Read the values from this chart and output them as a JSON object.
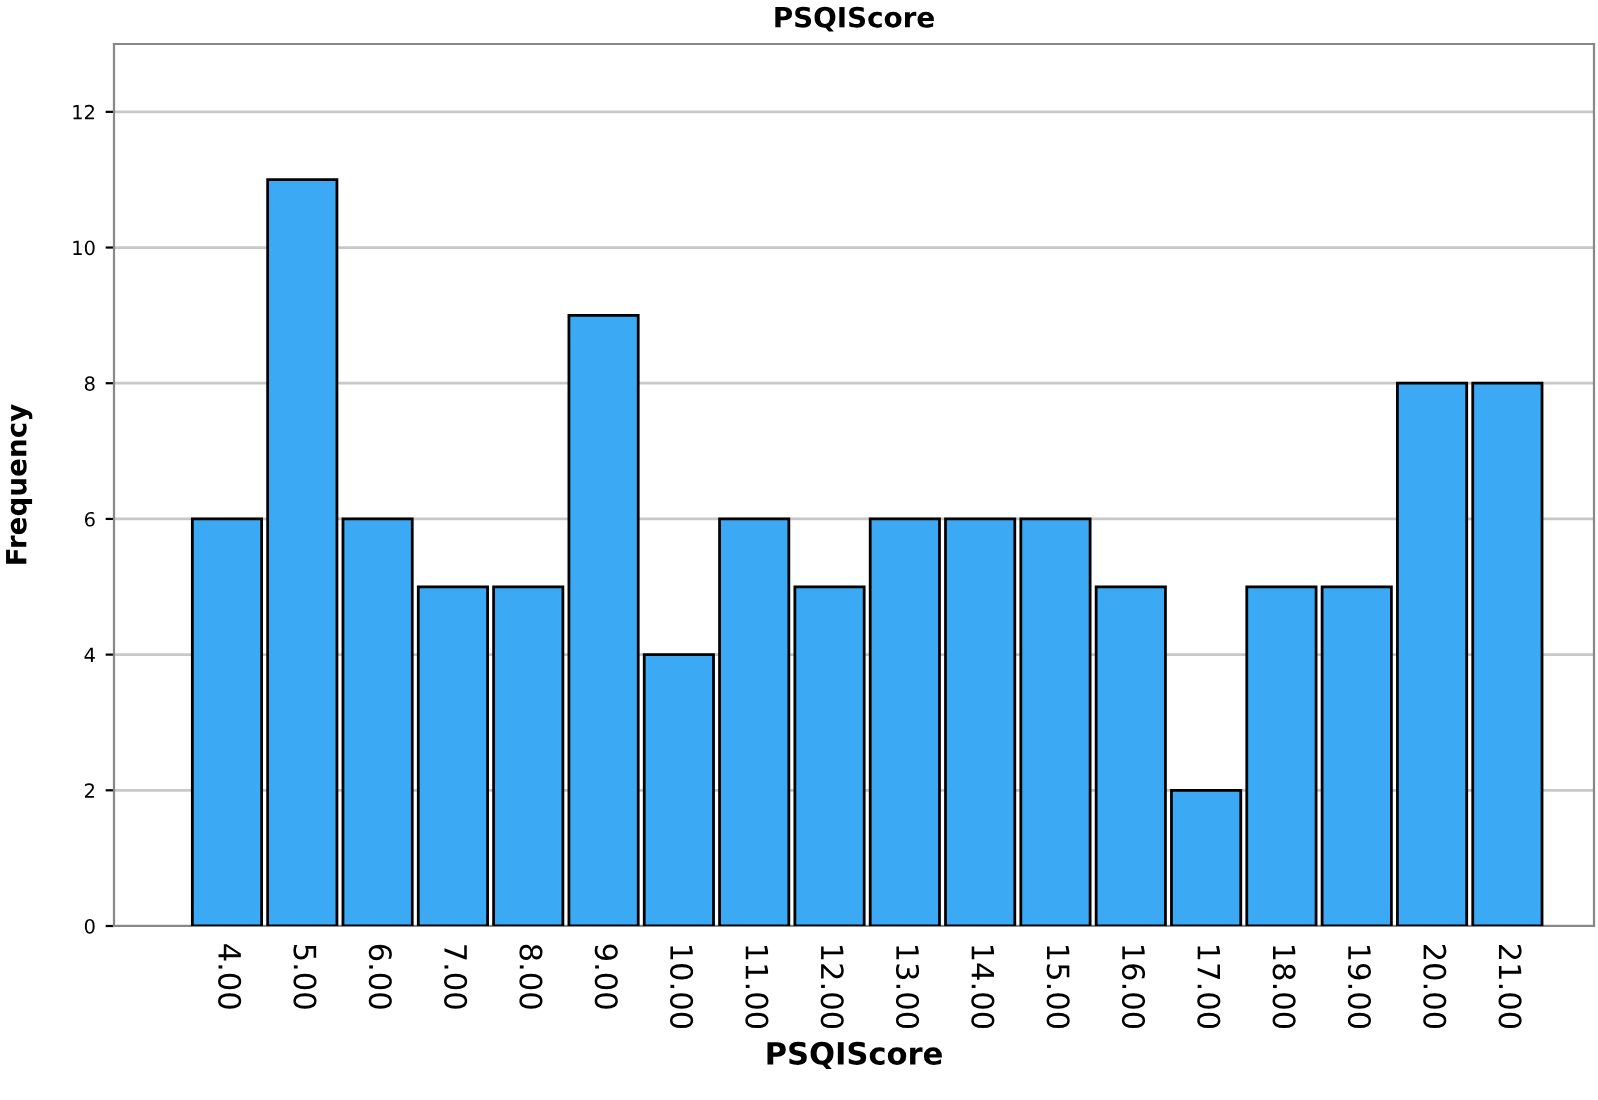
{
  "chart_data": {
    "type": "bar",
    "title": "PSQIScore",
    "xlabel": "PSQIScore",
    "ylabel": "Frequency",
    "categories": [
      "4.00",
      "5.00",
      "6.00",
      "7.00",
      "8.00",
      "9.00",
      "10.00",
      "11.00",
      "12.00",
      "13.00",
      "14.00",
      "15.00",
      "16.00",
      "17.00",
      "18.00",
      "19.00",
      "20.00",
      "21.00"
    ],
    "values": [
      6,
      11,
      6,
      5,
      5,
      9,
      4,
      6,
      5,
      6,
      6,
      6,
      5,
      2,
      5,
      5,
      8,
      8
    ],
    "color": "#3ca9f5",
    "ylim": [
      0,
      13
    ],
    "yticks": [
      0,
      2,
      4,
      6,
      8,
      10,
      12
    ],
    "grid": "y"
  }
}
